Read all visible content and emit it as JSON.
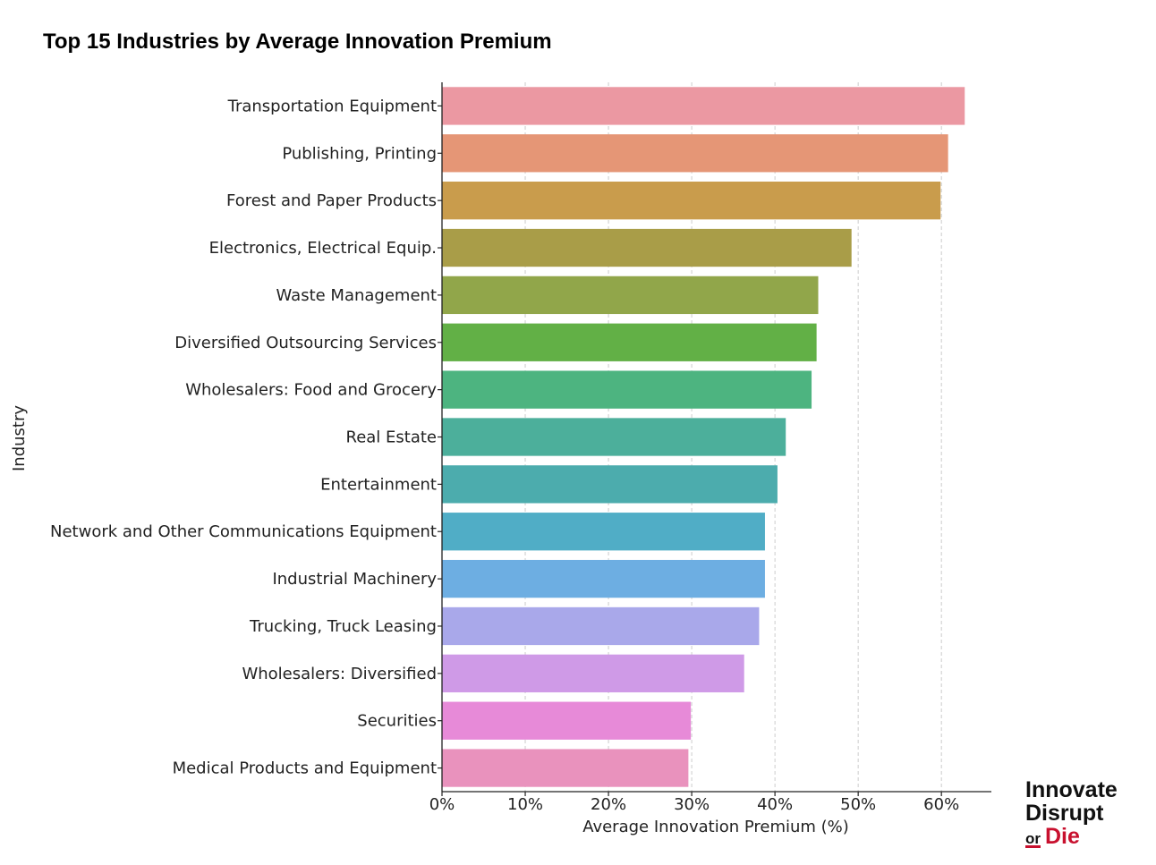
{
  "chart_data": {
    "type": "bar",
    "orientation": "horizontal",
    "title": "Top 15 Industries by Average Innovation Premium",
    "xlabel": "Average Innovation Premium (%)",
    "ylabel": "Industry",
    "xlim": [
      0,
      66
    ],
    "x_ticks": [
      "0%",
      "10%",
      "20%",
      "30%",
      "40%",
      "50%",
      "60%"
    ],
    "x_tick_values": [
      0,
      10,
      20,
      30,
      40,
      50,
      60
    ],
    "grid": "vertical dashed",
    "categories": [
      "Transportation Equipment",
      "Publishing, Printing",
      "Forest and Paper Products",
      "Electronics, Electrical Equip.",
      "Waste Management",
      "Diversified Outsourcing Services",
      "Wholesalers: Food and Grocery",
      "Real Estate",
      "Entertainment",
      "Network and Other Communications Equipment",
      "Industrial Machinery",
      "Trucking, Truck Leasing",
      "Wholesalers: Diversified",
      "Securities",
      "Medical Products and Equipment"
    ],
    "values": [
      62.8,
      60.8,
      59.9,
      49.2,
      45.2,
      45.0,
      44.4,
      41.3,
      40.3,
      38.8,
      38.8,
      38.1,
      36.3,
      29.9,
      29.6
    ],
    "colors": [
      "#eb98a2",
      "#e59676",
      "#c99c4c",
      "#a99d48",
      "#91a64a",
      "#62b046",
      "#4db480",
      "#4caf9b",
      "#4cacad",
      "#50adc6",
      "#6daee2",
      "#a9a8ea",
      "#cf9ae7",
      "#e78ad8",
      "#e992bd"
    ]
  },
  "brand": {
    "line1": "Innovate",
    "line2": "Disrupt",
    "or_text": "or",
    "die_text": "Die"
  }
}
